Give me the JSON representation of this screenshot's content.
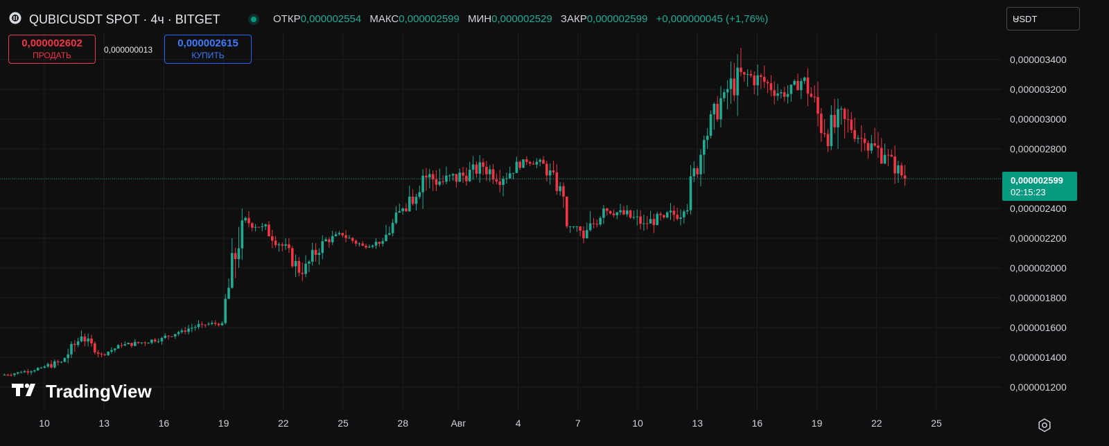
{
  "header": {
    "title": "QUBICUSDT SPOT · 4ч · BITGET",
    "ohlc": {
      "open_label": "ОТКР",
      "open": "0,000002554",
      "high_label": "МАКС",
      "high": "0,000002599",
      "low_label": "МИН",
      "low": "0,000002529",
      "close_label": "ЗАКР",
      "close": "0,000002599",
      "change": "+0,000000045 (+1,76%)"
    },
    "currency": "USDT"
  },
  "trade": {
    "sell_price": "0,000002602",
    "sell_label": "ПРОДАТЬ",
    "spread": "0,000000013",
    "buy_price": "0,000002615",
    "buy_label": "КУПИТЬ"
  },
  "price_tag": {
    "price": "0,000002599",
    "countdown": "02:15:23"
  },
  "watermark": "TradingView",
  "colors": {
    "up": "#22ab94",
    "down": "#f23645",
    "background": "#0f0f0f",
    "grid": "#1e1e1e",
    "accent": "#089981"
  },
  "icons": {
    "logo": "qubic-logo-icon",
    "status": "market-open-dot",
    "settings": "settings-gear-icon",
    "dropdown": "chevron-down-icon"
  },
  "chart_data": {
    "type": "candlestick",
    "timeframe": "4h",
    "y_ticks": [
      "0,000003400",
      "0,000003200",
      "0,000003000",
      "0,000002800",
      "0,000002600",
      "0,000002400",
      "0,000002200",
      "0,000002000",
      "0,000001800",
      "0,000001600",
      "0,000001400",
      "0,000001200"
    ],
    "x_ticks": [
      "10",
      "13",
      "16",
      "19",
      "22",
      "25",
      "28",
      "Авг",
      "4",
      "7",
      "10",
      "13",
      "16",
      "19",
      "22",
      "25"
    ],
    "ylim": [
      1.15e-06,
      3.55e-06
    ],
    "last_price": 2.599e-06,
    "series_daily_closes": [
      {
        "date": "Jul 09",
        "o": 1.28e-06,
        "h": 1.32e-06,
        "l": 1.26e-06,
        "c": 1.3e-06
      },
      {
        "date": "Jul 10",
        "o": 1.3e-06,
        "h": 1.35e-06,
        "l": 1.28e-06,
        "c": 1.33e-06
      },
      {
        "date": "Jul 11",
        "o": 1.33e-06,
        "h": 1.4e-06,
        "l": 1.28e-06,
        "c": 1.37e-06
      },
      {
        "date": "Jul 12",
        "o": 1.37e-06,
        "h": 1.58e-06,
        "l": 1.36e-06,
        "c": 1.54e-06
      },
      {
        "date": "Jul 13",
        "o": 1.54e-06,
        "h": 1.56e-06,
        "l": 1.4e-06,
        "c": 1.42e-06
      },
      {
        "date": "Jul 14",
        "o": 1.42e-06,
        "h": 1.5e-06,
        "l": 1.41e-06,
        "c": 1.48e-06
      },
      {
        "date": "Jul 15",
        "o": 1.48e-06,
        "h": 1.53e-06,
        "l": 1.44e-06,
        "c": 1.5e-06
      },
      {
        "date": "Jul 16",
        "o": 1.5e-06,
        "h": 1.56e-06,
        "l": 1.46e-06,
        "c": 1.53e-06
      },
      {
        "date": "Jul 17",
        "o": 1.53e-06,
        "h": 1.6e-06,
        "l": 1.5e-06,
        "c": 1.58e-06
      },
      {
        "date": "Jul 18",
        "o": 1.58e-06,
        "h": 1.66e-06,
        "l": 1.55e-06,
        "c": 1.62e-06
      },
      {
        "date": "Jul 19",
        "o": 1.62e-06,
        "h": 1.68e-06,
        "l": 1.6e-06,
        "c": 1.63e-06
      },
      {
        "date": "Jul 20",
        "o": 1.63e-06,
        "h": 2.4e-06,
        "l": 1.62e-06,
        "c": 2.32e-06
      },
      {
        "date": "Jul 21",
        "o": 2.32e-06,
        "h": 2.4e-06,
        "l": 2.2e-06,
        "c": 2.28e-06
      },
      {
        "date": "Jul 22",
        "o": 2.28e-06,
        "h": 2.34e-06,
        "l": 2.1e-06,
        "c": 2.15e-06
      },
      {
        "date": "Jul 23",
        "o": 2.15e-06,
        "h": 2.2e-06,
        "l": 1.9e-06,
        "c": 1.96e-06
      },
      {
        "date": "Jul 24",
        "o": 1.96e-06,
        "h": 2.22e-06,
        "l": 1.9e-06,
        "c": 2.18e-06
      },
      {
        "date": "Jul 25",
        "o": 2.18e-06,
        "h": 2.26e-06,
        "l": 2.1e-06,
        "c": 2.22e-06
      },
      {
        "date": "Jul 26",
        "o": 2.22e-06,
        "h": 2.26e-06,
        "l": 2.12e-06,
        "c": 2.15e-06
      },
      {
        "date": "Jul 27",
        "o": 2.15e-06,
        "h": 2.22e-06,
        "l": 2.12e-06,
        "c": 2.18e-06
      },
      {
        "date": "Jul 28",
        "o": 2.18e-06,
        "h": 2.45e-06,
        "l": 2.16e-06,
        "c": 2.4e-06
      },
      {
        "date": "Jul 29",
        "o": 2.4e-06,
        "h": 2.93e-06,
        "l": 2.38e-06,
        "c": 2.62e-06
      },
      {
        "date": "Jul 30",
        "o": 2.62e-06,
        "h": 2.86e-06,
        "l": 2.46e-06,
        "c": 2.58e-06
      },
      {
        "date": "Jul 31",
        "o": 2.58e-06,
        "h": 2.85e-06,
        "l": 2.5e-06,
        "c": 2.62e-06
      },
      {
        "date": "Aug 01",
        "o": 2.62e-06,
        "h": 2.78e-06,
        "l": 2.5e-06,
        "c": 2.68e-06
      },
      {
        "date": "Aug 02",
        "o": 2.68e-06,
        "h": 2.72e-06,
        "l": 2.4e-06,
        "c": 2.6e-06
      },
      {
        "date": "Aug 03",
        "o": 2.6e-06,
        "h": 2.77e-06,
        "l": 2.56e-06,
        "c": 2.73e-06
      },
      {
        "date": "Aug 04",
        "o": 2.73e-06,
        "h": 2.78e-06,
        "l": 2.64e-06,
        "c": 2.7e-06
      },
      {
        "date": "Aug 05",
        "o": 2.7e-06,
        "h": 2.72e-06,
        "l": 2.4e-06,
        "c": 2.48e-06
      },
      {
        "date": "Aug 06",
        "o": 2.48e-06,
        "h": 2.28e-06,
        "l": 2.1e-06,
        "c": 2.2e-06
      },
      {
        "date": "Aug 07",
        "o": 2.2e-06,
        "h": 2.48e-06,
        "l": 2.15e-06,
        "c": 2.4e-06
      },
      {
        "date": "Aug 08",
        "o": 2.4e-06,
        "h": 2.46e-06,
        "l": 2.28e-06,
        "c": 2.36e-06
      },
      {
        "date": "Aug 09",
        "o": 2.36e-06,
        "h": 2.48e-06,
        "l": 2.22e-06,
        "c": 2.3e-06
      },
      {
        "date": "Aug 10",
        "o": 2.3e-06,
        "h": 2.44e-06,
        "l": 2.22e-06,
        "c": 2.34e-06
      },
      {
        "date": "Aug 11",
        "o": 2.34e-06,
        "h": 2.48e-06,
        "l": 2.22e-06,
        "c": 2.38e-06
      },
      {
        "date": "Aug 12",
        "o": 2.38e-06,
        "h": 2.9e-06,
        "l": 2.36e-06,
        "c": 2.86e-06
      },
      {
        "date": "Aug 13",
        "o": 2.86e-06,
        "h": 3.3e-06,
        "l": 2.8e-06,
        "c": 3.18e-06
      },
      {
        "date": "Aug 14",
        "o": 3.18e-06,
        "h": 3.51e-06,
        "l": 2.94e-06,
        "c": 3.3e-06
      },
      {
        "date": "Aug 15",
        "o": 3.3e-06,
        "h": 3.4e-06,
        "l": 3.02e-06,
        "c": 3.25e-06
      },
      {
        "date": "Aug 16",
        "o": 3.25e-06,
        "h": 3.41e-06,
        "l": 3.1e-06,
        "c": 3.15e-06
      },
      {
        "date": "Aug 17",
        "o": 3.15e-06,
        "h": 3.35e-06,
        "l": 3.1e-06,
        "c": 3.28e-06
      },
      {
        "date": "Aug 18",
        "o": 3.28e-06,
        "h": 3.34e-06,
        "l": 2.72e-06,
        "c": 2.9e-06
      },
      {
        "date": "Aug 19",
        "o": 2.9e-06,
        "h": 3.35e-06,
        "l": 2.76e-06,
        "c": 3e-06
      },
      {
        "date": "Aug 20",
        "o": 3e-06,
        "h": 3.16e-06,
        "l": 2.78e-06,
        "c": 2.84e-06
      },
      {
        "date": "Aug 21",
        "o": 2.84e-06,
        "h": 3.14e-06,
        "l": 2.7e-06,
        "c": 2.76e-06
      },
      {
        "date": "Aug 22",
        "o": 2.76e-06,
        "h": 2.85e-06,
        "l": 2.53e-06,
        "c": 2.6e-06
      }
    ]
  }
}
